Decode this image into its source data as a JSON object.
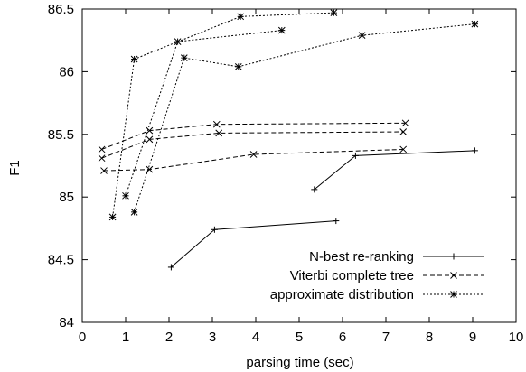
{
  "chart_data": {
    "type": "line",
    "xlabel": "parsing time (sec)",
    "ylabel": "F1",
    "xlim": [
      0,
      10
    ],
    "ylim": [
      84,
      86.5
    ],
    "xticks": [
      0,
      1,
      2,
      3,
      4,
      5,
      6,
      7,
      8,
      9,
      10
    ],
    "yticks": [
      84,
      84.5,
      85,
      85.5,
      86,
      86.5
    ],
    "ytick_labels": [
      "84",
      "84.5",
      "85",
      "85.5",
      "86",
      "86.5"
    ],
    "grid": false,
    "legend_position": "bottom-right",
    "series": [
      {
        "name": "N-best re-ranking",
        "style": "solid",
        "marker": "plus",
        "color": "#000000",
        "lines": [
          [
            [
              2.05,
              84.44
            ],
            [
              3.05,
              84.74
            ],
            [
              5.85,
              84.81
            ]
          ],
          [
            [
              5.35,
              85.06
            ],
            [
              6.3,
              85.33
            ],
            [
              9.05,
              85.37
            ]
          ]
        ]
      },
      {
        "name": "Viterbi complete tree",
        "style": "dashed",
        "marker": "x",
        "color": "#000000",
        "lines": [
          [
            [
              0.45,
              85.38
            ],
            [
              1.55,
              85.53
            ],
            [
              3.1,
              85.58
            ],
            [
              7.45,
              85.59
            ]
          ],
          [
            [
              0.45,
              85.31
            ],
            [
              1.55,
              85.46
            ],
            [
              3.15,
              85.51
            ],
            [
              7.4,
              85.52
            ]
          ],
          [
            [
              0.5,
              85.21
            ],
            [
              1.55,
              85.22
            ],
            [
              3.95,
              85.34
            ],
            [
              7.4,
              85.38
            ]
          ]
        ]
      },
      {
        "name": "approximate distribution",
        "style": "dotted",
        "marker": "star",
        "color": "#000000",
        "lines": [
          [
            [
              0.7,
              84.84
            ],
            [
              1.2,
              86.1
            ],
            [
              3.65,
              86.44
            ],
            [
              5.8,
              86.47
            ]
          ],
          [
            [
              1.0,
              85.01
            ],
            [
              2.2,
              86.24
            ],
            [
              4.6,
              86.33
            ]
          ],
          [
            [
              1.2,
              84.88
            ],
            [
              2.35,
              86.11
            ],
            [
              3.6,
              86.04
            ],
            [
              6.45,
              86.29
            ],
            [
              9.05,
              86.38
            ]
          ]
        ]
      }
    ]
  }
}
